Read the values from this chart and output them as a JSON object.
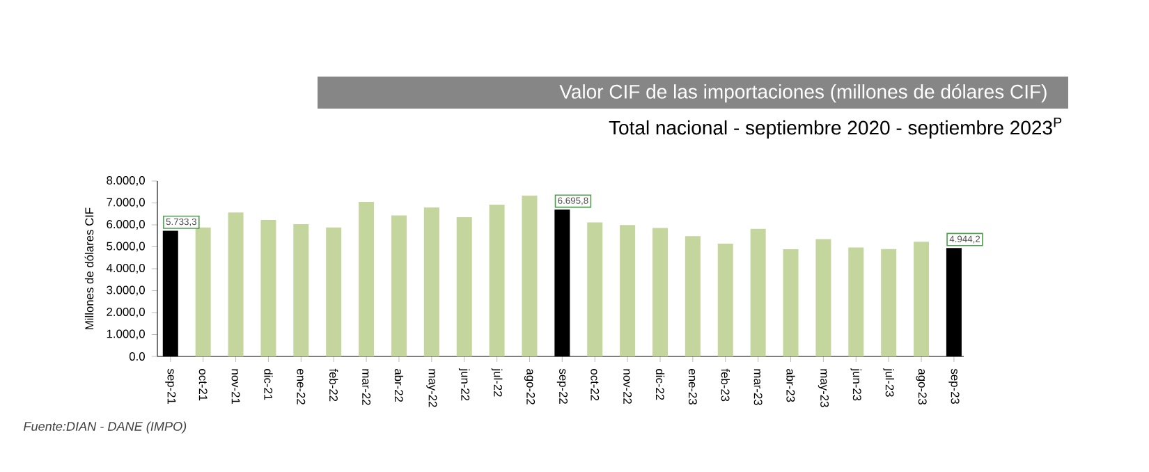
{
  "chart_data": {
    "type": "bar",
    "title": "Valor CIF de las importaciones (millones de dólares CIF)",
    "subtitle": "Total nacional - septiembre 2020 - septiembre 2023$^{P}$",
    "ylabel": "Millones de dólares CIF",
    "categories": [
      "sep-21",
      "oct-21",
      "nov-21",
      "dic-21",
      "ene-22",
      "feb-22",
      "mar-22",
      "abr-22",
      "may-22",
      "jun-22",
      "jul-22",
      "ago-22",
      "sep-22",
      "oct-22",
      "nov-22",
      "dic-22",
      "ene-23",
      "feb-23",
      "mar-23",
      "abr-23",
      "may-23",
      "jun-23",
      "jul-23",
      "ago-23",
      "sep-23"
    ],
    "values": [
      5733.3,
      5880,
      6560,
      6220,
      6030,
      5880,
      7050,
      6430,
      6790,
      6350,
      6920,
      7330,
      6695.8,
      6110,
      5990,
      5860,
      5480,
      5140,
      5820,
      4890,
      5350,
      4970,
      4900,
      5230,
      4944.2
    ],
    "colors": [
      "#000000",
      "#c5d59e",
      "#c5d59e",
      "#c5d59e",
      "#c5d59e",
      "#c5d59e",
      "#c5d59e",
      "#c5d59e",
      "#c5d59e",
      "#c5d59e",
      "#c5d59e",
      "#c5d59e",
      "#000000",
      "#c5d59e",
      "#c5d59e",
      "#c5d59e",
      "#c5d59e",
      "#c5d59e",
      "#c5d59e",
      "#c5d59e",
      "#c5d59e",
      "#c5d59e",
      "#c5d59e",
      "#c5d59e",
      "#000000"
    ],
    "value_labels": [
      "5.733,3",
      null,
      null,
      null,
      null,
      null,
      null,
      null,
      null,
      null,
      null,
      null,
      "6.695,8",
      null,
      null,
      null,
      null,
      null,
      null,
      null,
      null,
      null,
      null,
      null,
      "4.944,2"
    ],
    "ylim": [
      0,
      8000
    ],
    "yticks": [
      {
        "value": 0,
        "label": "0.0"
      },
      {
        "value": 1000,
        "label": "1.000,0"
      },
      {
        "value": 2000,
        "label": "2.000,0"
      },
      {
        "value": 3000,
        "label": "3.000,0"
      },
      {
        "value": 4000,
        "label": "4.000,0"
      },
      {
        "value": 5000,
        "label": "5.000,0"
      },
      {
        "value": 6000,
        "label": "6.000,0"
      },
      {
        "value": 7000,
        "label": "7.000,0"
      },
      {
        "value": 8000,
        "label": "8.000,0"
      }
    ],
    "annotations": [
      "Fuente:DIAN - DANE (IMPO)"
    ]
  }
}
